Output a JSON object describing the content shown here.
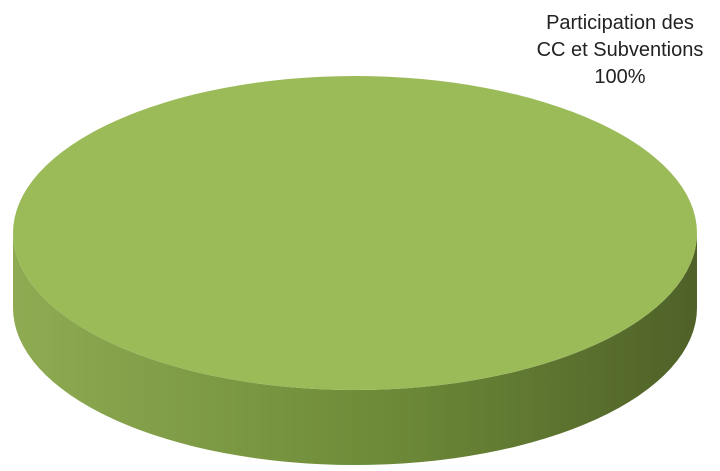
{
  "chart_data": {
    "type": "pie",
    "style": "3d",
    "slices": [
      {
        "label_lines": [
          "Participation des",
          "CC et Subventions"
        ],
        "value": 100,
        "percent_label": "100%",
        "color": "#9bbb59",
        "side_color_light": "#8fab52",
        "side_color_dark": "#4f6128"
      }
    ],
    "legend": "none"
  }
}
